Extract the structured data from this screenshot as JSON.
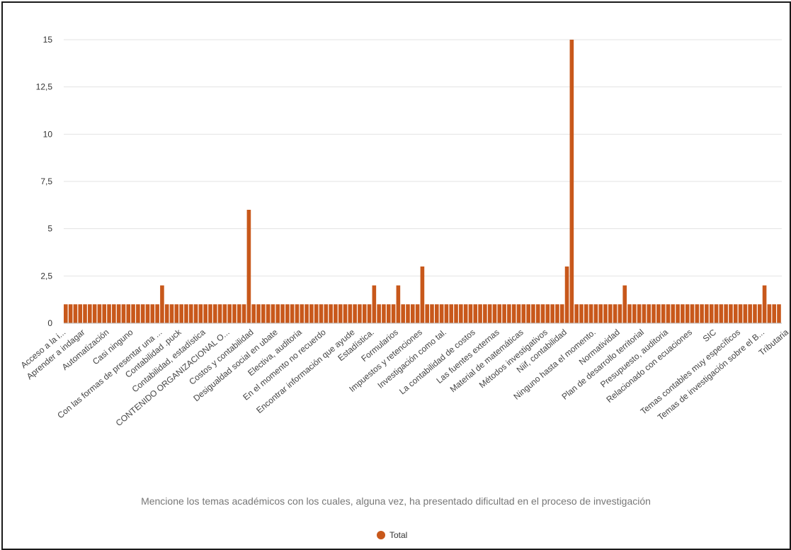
{
  "chart_data": {
    "type": "bar",
    "title": "",
    "xlabel": "Mencione los temas académicos con los cuales, alguna vez, ha presentado dificultad en el proceso de investigación",
    "ylabel": "",
    "ylim": [
      0,
      15
    ],
    "yticks": [
      "0",
      "2,5",
      "5",
      "7,5",
      "10",
      "12,5",
      "15"
    ],
    "grid": true,
    "legend_position": "bottom-center",
    "color": "#c8581b",
    "series": [
      {
        "name": "Total",
        "values": [
          1,
          1,
          1,
          1,
          1,
          1,
          1,
          1,
          1,
          1,
          1,
          1,
          1,
          1,
          1,
          1,
          1,
          1,
          1,
          1,
          2,
          1,
          1,
          1,
          1,
          1,
          1,
          1,
          1,
          1,
          1,
          1,
          1,
          1,
          1,
          1,
          1,
          1,
          6,
          1,
          1,
          1,
          1,
          1,
          1,
          1,
          1,
          1,
          1,
          1,
          1,
          1,
          1,
          1,
          1,
          1,
          1,
          1,
          1,
          1,
          1,
          1,
          1,
          1,
          2,
          1,
          1,
          1,
          1,
          2,
          1,
          1,
          1,
          1,
          3,
          1,
          1,
          1,
          1,
          1,
          1,
          1,
          1,
          1,
          1,
          1,
          1,
          1,
          1,
          1,
          1,
          1,
          1,
          1,
          1,
          1,
          1,
          1,
          1,
          1,
          1,
          1,
          1,
          1,
          3,
          15,
          1,
          1,
          1,
          1,
          1,
          1,
          1,
          1,
          1,
          1,
          2,
          1,
          1,
          1,
          1,
          1,
          1,
          1,
          1,
          1,
          1,
          1,
          1,
          1,
          1,
          1,
          1,
          1,
          1,
          1,
          1,
          1,
          1,
          1,
          1,
          1,
          1,
          1,
          1,
          2,
          1,
          1,
          1
        ]
      }
    ],
    "tick_labels": [
      {
        "index": 0,
        "label": "Acceso a la i..."
      },
      {
        "index": 4,
        "label": "Aprender a indagar"
      },
      {
        "index": 9,
        "label": "Automatización"
      },
      {
        "index": 14,
        "label": "Casi ninguno"
      },
      {
        "index": 20,
        "label": "Con las formas de presentar una ..."
      },
      {
        "index": 24,
        "label": "Contabilidad .puck"
      },
      {
        "index": 29,
        "label": "Contabilidad, estadística"
      },
      {
        "index": 34,
        "label": "CONTENIDO ORGANIZACIONAL O..."
      },
      {
        "index": 39,
        "label": "Costos y contabilidad"
      },
      {
        "index": 44,
        "label": "Desigualdad social en ubate"
      },
      {
        "index": 49,
        "label": "Electiva, auditoria"
      },
      {
        "index": 54,
        "label": "En el momento no recuerdo"
      },
      {
        "index": 60,
        "label": "Encontrar información que ayude"
      },
      {
        "index": 64,
        "label": "Estadística."
      },
      {
        "index": 69,
        "label": "Formularios"
      },
      {
        "index": 74,
        "label": "Impuestos y retenciones"
      },
      {
        "index": 79,
        "label": "Investigación como tal."
      },
      {
        "index": 85,
        "label": "La contabilidad de costos"
      },
      {
        "index": 90,
        "label": "Las fuentes externas"
      },
      {
        "index": 95,
        "label": "Material de matemáticas"
      },
      {
        "index": 100,
        "label": "Métodos investigativos"
      },
      {
        "index": 104,
        "label": "Niif, contabilidad"
      },
      {
        "index": 110,
        "label": "Ninguno hasta el momento."
      },
      {
        "index": 115,
        "label": "Normatividad"
      },
      {
        "index": 120,
        "label": "Plan de desarrollo territorial"
      },
      {
        "index": 125,
        "label": "Presupuesto, auditoria"
      },
      {
        "index": 130,
        "label": "Relacionado con ecuaciones"
      },
      {
        "index": 135,
        "label": "SIC"
      },
      {
        "index": 140,
        "label": "Temas contables muy específicos"
      },
      {
        "index": 145,
        "label": "Temas de investigación sobre el B..."
      },
      {
        "index": 150,
        "label": "Tributaria"
      }
    ]
  }
}
